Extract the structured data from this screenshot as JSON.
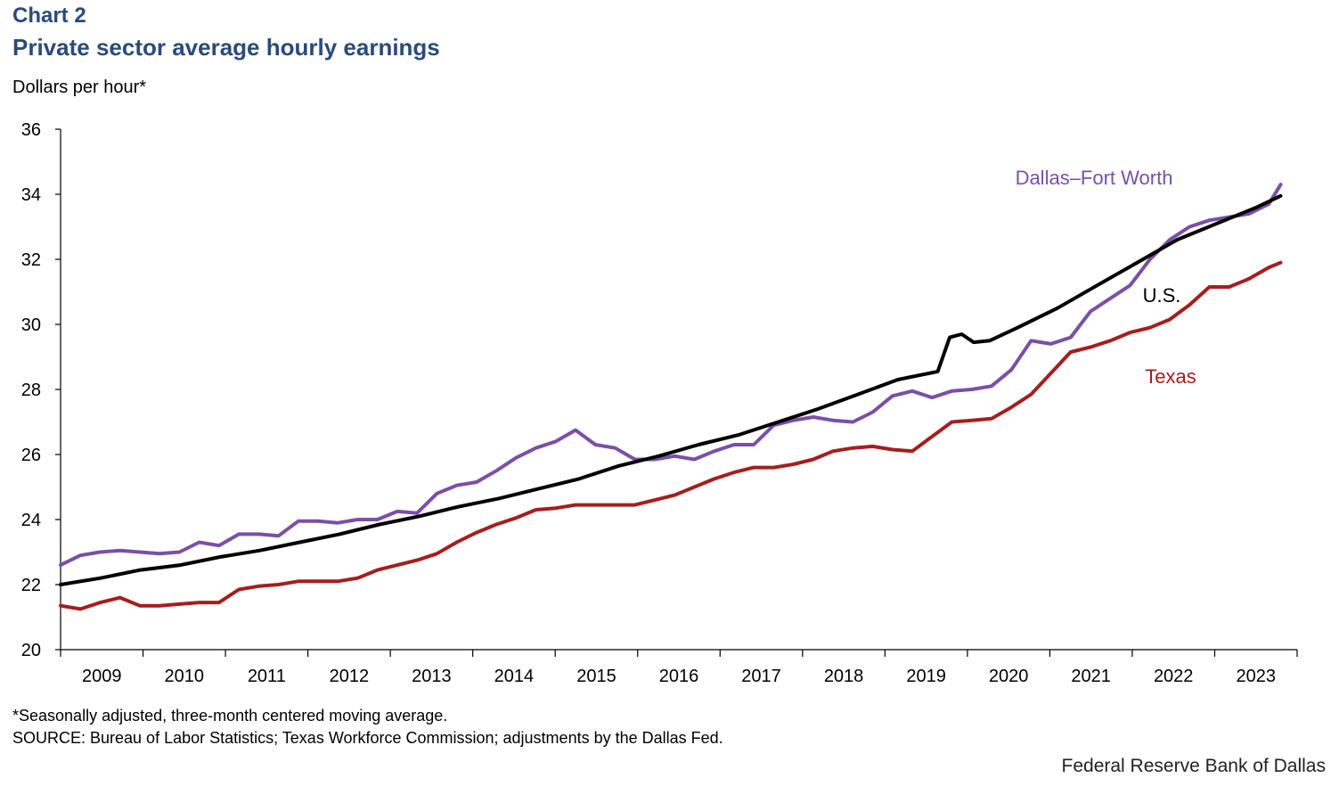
{
  "header": {
    "chart_label": "Chart 2",
    "title": "Private sector average hourly earnings"
  },
  "footer": {
    "footnote": "*Seasonally adjusted, three-month centered moving average.",
    "source": "SOURCE: Bureau of Labor Statistics; Texas Workforce Commission; adjustments by the Dallas Fed.",
    "credit": "Federal Reserve Bank of Dallas"
  },
  "chart_data": {
    "type": "line",
    "title": "Private sector average hourly earnings",
    "xlabel": "",
    "ylabel": "Dollars per hour*",
    "xlim": [
      2009.0,
      2024.0
    ],
    "ylim": [
      20,
      36
    ],
    "yticks": [
      20,
      22,
      24,
      26,
      28,
      30,
      32,
      34,
      36
    ],
    "categories": [
      "2009",
      "2010",
      "2011",
      "2012",
      "2013",
      "2014",
      "2015",
      "2016",
      "2017",
      "2018",
      "2019",
      "2020",
      "2021",
      "2022",
      "2023"
    ],
    "series": [
      {
        "name": "Dallas–Fort Worth",
        "color": "#7b4fa6",
        "x": [
          2009.0,
          2009.25,
          2009.5,
          2009.75,
          2010.0,
          2010.25,
          2010.5,
          2010.75,
          2011.0,
          2011.25,
          2011.5,
          2011.75,
          2012.0,
          2012.25,
          2012.5,
          2012.75,
          2013.0,
          2013.25,
          2013.5,
          2013.75,
          2014.0,
          2014.25,
          2014.5,
          2014.75,
          2015.0,
          2015.25,
          2015.5,
          2015.75,
          2016.0,
          2016.25,
          2016.5,
          2016.75,
          2017.0,
          2017.25,
          2017.5,
          2017.75,
          2018.0,
          2018.25,
          2018.5,
          2018.75,
          2019.0,
          2019.25,
          2019.5,
          2019.75,
          2020.0,
          2020.25,
          2020.5,
          2020.75,
          2021.0,
          2021.25,
          2021.5,
          2021.75,
          2022.0,
          2022.25,
          2022.5,
          2022.75,
          2023.0,
          2023.25,
          2023.5,
          2023.75,
          2024.0,
          2024.25,
          2024.4
        ],
        "values": [
          22.6,
          22.9,
          23.0,
          23.05,
          23.0,
          22.95,
          23.0,
          23.3,
          23.2,
          23.55,
          23.55,
          23.5,
          23.95,
          23.95,
          23.9,
          24.0,
          24.0,
          24.25,
          24.2,
          24.8,
          25.05,
          25.15,
          25.5,
          25.9,
          26.2,
          26.4,
          26.75,
          26.3,
          26.2,
          25.85,
          25.85,
          25.95,
          25.85,
          26.1,
          26.3,
          26.3,
          26.9,
          27.05,
          27.15,
          27.05,
          27.0,
          27.3,
          27.8,
          27.95,
          27.75,
          27.95,
          28.0,
          28.1,
          28.6,
          29.5,
          29.4,
          29.6,
          30.4,
          30.8,
          31.2,
          32.0,
          32.6,
          33.0,
          33.2,
          33.3,
          33.4,
          33.7,
          34.3
        ]
      },
      {
        "name": "U.S.",
        "color": "#000000",
        "x": [
          2009.0,
          2009.5,
          2010.0,
          2010.5,
          2011.0,
          2011.5,
          2012.0,
          2012.5,
          2013.0,
          2013.5,
          2014.0,
          2014.5,
          2015.0,
          2015.5,
          2016.0,
          2016.5,
          2017.0,
          2017.5,
          2018.0,
          2018.5,
          2019.0,
          2019.5,
          2020.0,
          2020.15,
          2020.3,
          2020.45,
          2020.65,
          2021.0,
          2021.5,
          2022.0,
          2022.5,
          2023.0,
          2023.5,
          2024.0,
          2024.3
        ],
        "values": [
          22.0,
          22.2,
          22.45,
          22.6,
          22.85,
          23.05,
          23.3,
          23.55,
          23.85,
          24.1,
          24.4,
          24.65,
          24.95,
          25.25,
          25.65,
          25.95,
          26.3,
          26.6,
          27.0,
          27.4,
          27.85,
          28.3,
          28.55,
          29.6,
          29.7,
          29.45,
          29.5,
          29.9,
          30.5,
          31.2,
          31.9,
          32.6,
          33.1,
          33.6,
          33.95
        ]
      },
      {
        "name": "Texas",
        "color": "#a51e1e",
        "x": [
          2009.0,
          2009.25,
          2009.5,
          2009.75,
          2010.0,
          2010.25,
          2010.5,
          2010.75,
          2011.0,
          2011.25,
          2011.5,
          2011.75,
          2012.0,
          2012.25,
          2012.5,
          2012.75,
          2013.0,
          2013.25,
          2013.5,
          2013.75,
          2014.0,
          2014.25,
          2014.5,
          2014.75,
          2015.0,
          2015.25,
          2015.5,
          2015.75,
          2016.0,
          2016.25,
          2016.5,
          2016.75,
          2017.0,
          2017.25,
          2017.5,
          2017.75,
          2018.0,
          2018.25,
          2018.5,
          2018.75,
          2019.0,
          2019.25,
          2019.5,
          2019.75,
          2020.0,
          2020.25,
          2020.5,
          2020.75,
          2021.0,
          2021.25,
          2021.5,
          2021.75,
          2022.0,
          2022.25,
          2022.5,
          2022.75,
          2023.0,
          2023.25,
          2023.5,
          2023.75,
          2024.0,
          2024.25,
          2024.4
        ],
        "values": [
          21.35,
          21.25,
          21.45,
          21.6,
          21.35,
          21.35,
          21.4,
          21.45,
          21.45,
          21.85,
          21.95,
          22.0,
          22.1,
          22.1,
          22.1,
          22.2,
          22.45,
          22.6,
          22.75,
          22.95,
          23.3,
          23.6,
          23.85,
          24.05,
          24.3,
          24.35,
          24.45,
          24.45,
          24.45,
          24.45,
          24.6,
          24.75,
          25.0,
          25.25,
          25.45,
          25.6,
          25.6,
          25.7,
          25.85,
          26.1,
          26.2,
          26.25,
          26.15,
          26.1,
          26.55,
          27.0,
          27.05,
          27.1,
          27.45,
          27.85,
          28.5,
          29.15,
          29.3,
          29.5,
          29.75,
          29.9,
          30.15,
          30.6,
          31.15,
          31.15,
          31.4,
          31.75,
          31.9
        ]
      }
    ],
    "annotations": [
      {
        "text": "Dallas–Fort Worth",
        "series": "Dallas–Fort Worth"
      },
      {
        "text": "U.S.",
        "series": "U.S."
      },
      {
        "text": "Texas",
        "series": "Texas"
      }
    ]
  }
}
